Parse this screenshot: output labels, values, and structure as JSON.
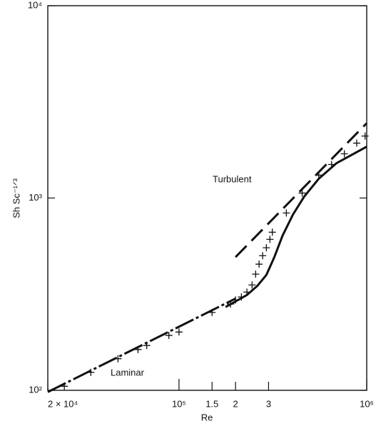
{
  "chart_data": {
    "type": "line",
    "xlabel": "Re",
    "ylabel": "Sh Sc⁻¹ᐟ³",
    "xscale": "log",
    "yscale": "log",
    "xlim": [
      20000,
      1000000
    ],
    "ylim": [
      100,
      10000
    ],
    "xticks": [
      {
        "value": 20000,
        "label": "2 × 10⁴"
      },
      {
        "value": 100000,
        "label": "10⁵"
      },
      {
        "value": 150000,
        "label": "1.5"
      },
      {
        "value": 200000,
        "label": "2"
      },
      {
        "value": 300000,
        "label": "3"
      },
      {
        "value": 1000000,
        "label": "10⁶"
      }
    ],
    "yticks": [
      {
        "value": 100,
        "label": "10²"
      },
      {
        "value": 1000,
        "label": "10³"
      },
      {
        "value": 10000,
        "label": "10⁴"
      }
    ],
    "annotations": [
      "Turbulent",
      "Laminar"
    ],
    "series": [
      {
        "color": "#111111",
        "style": "markers",
        "marker": "plus",
        "x": [
          24500,
          33900,
          47300,
          60500,
          67300,
          88300,
          100000,
          150000,
          188000,
          200000,
          215000,
          230000,
          245000,
          256000,
          267000,
          279000,
          292000,
          305000,
          314000,
          373000,
          453000,
          555000,
          650000,
          760000,
          884000,
          980000
        ],
        "values": [
          105,
          124,
          146,
          163,
          171,
          193,
          201,
          254,
          281,
          295,
          306,
          324,
          353,
          402,
          453,
          501,
          551,
          610,
          664,
          836,
          1061,
          1315,
          1494,
          1698,
          1930,
          2100
        ]
      },
      {
        "color": "#111111",
        "style": "dashdot",
        "x": [
          20000,
          200000
        ],
        "values": [
          98,
          300
        ]
      },
      {
        "color": "#111111",
        "style": "dashed",
        "x": [
          200000,
          1000000
        ],
        "values": [
          493,
          2450
        ]
      },
      {
        "color": "#111111",
        "style": "solid",
        "x": [
          177000,
          230000,
          262000,
          292000,
          322000,
          356000,
          405000,
          464000,
          555000,
          690000,
          1000000
        ],
        "values": [
          271,
          313,
          350,
          398,
          493,
          637,
          822,
          1016,
          1259,
          1517,
          1850
        ]
      }
    ]
  }
}
